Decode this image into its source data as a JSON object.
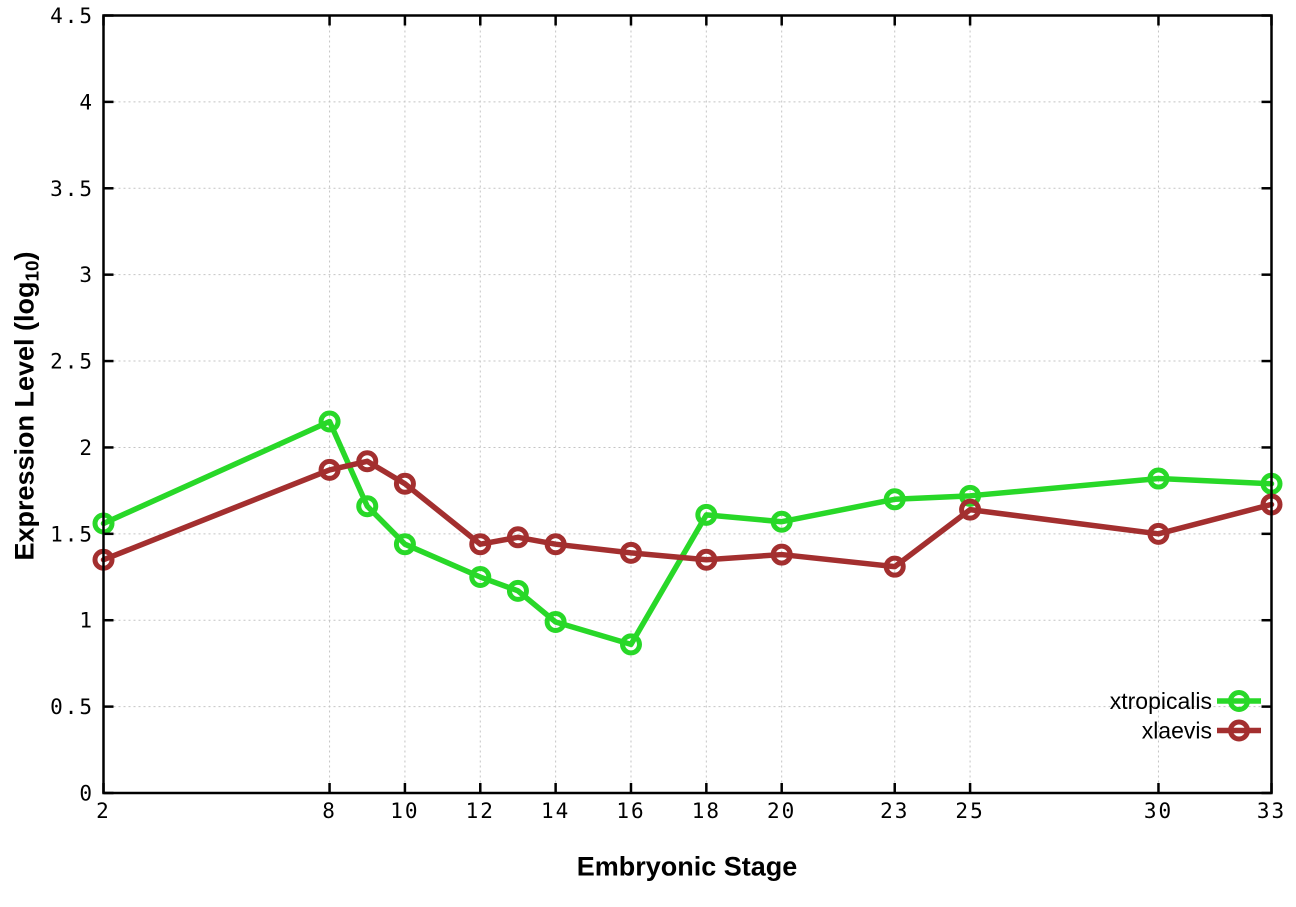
{
  "chart_data": {
    "type": "line",
    "title": "",
    "xlabel": "Embryonic Stage",
    "ylabel_prefix": "Expression Level (log",
    "ylabel_sub": "10",
    "ylabel_suffix": ")",
    "xlim": [
      2,
      33
    ],
    "ylim": [
      0,
      4.5
    ],
    "x_ticks": [
      2,
      8,
      10,
      12,
      14,
      16,
      18,
      20,
      23,
      25,
      30,
      33
    ],
    "y_ticks": [
      0,
      0.5,
      1,
      1.5,
      2,
      2.5,
      3,
      3.5,
      4,
      4.5
    ],
    "grid": true,
    "grid_style": "dotted",
    "legend_position": "bottom-right",
    "marker": "open-circle",
    "x": [
      2,
      8,
      9,
      10,
      12,
      13,
      14,
      16,
      18,
      20,
      23,
      25,
      30,
      33
    ],
    "series": [
      {
        "name": "xtropicalis",
        "color": "#28d828",
        "values": [
          1.56,
          2.15,
          1.66,
          1.44,
          1.25,
          1.17,
          0.99,
          0.86,
          1.61,
          1.57,
          1.7,
          1.72,
          1.82,
          1.79
        ]
      },
      {
        "name": "xlaevis",
        "color": "#a32f2f",
        "values": [
          1.35,
          1.87,
          1.92,
          1.79,
          1.44,
          1.48,
          1.44,
          1.39,
          1.35,
          1.38,
          1.31,
          1.64,
          1.5,
          1.67
        ]
      }
    ],
    "colors": {
      "background": "#ffffff",
      "border": "#000000",
      "grid": "#c4c4c4",
      "tick_text": "#000000"
    }
  }
}
